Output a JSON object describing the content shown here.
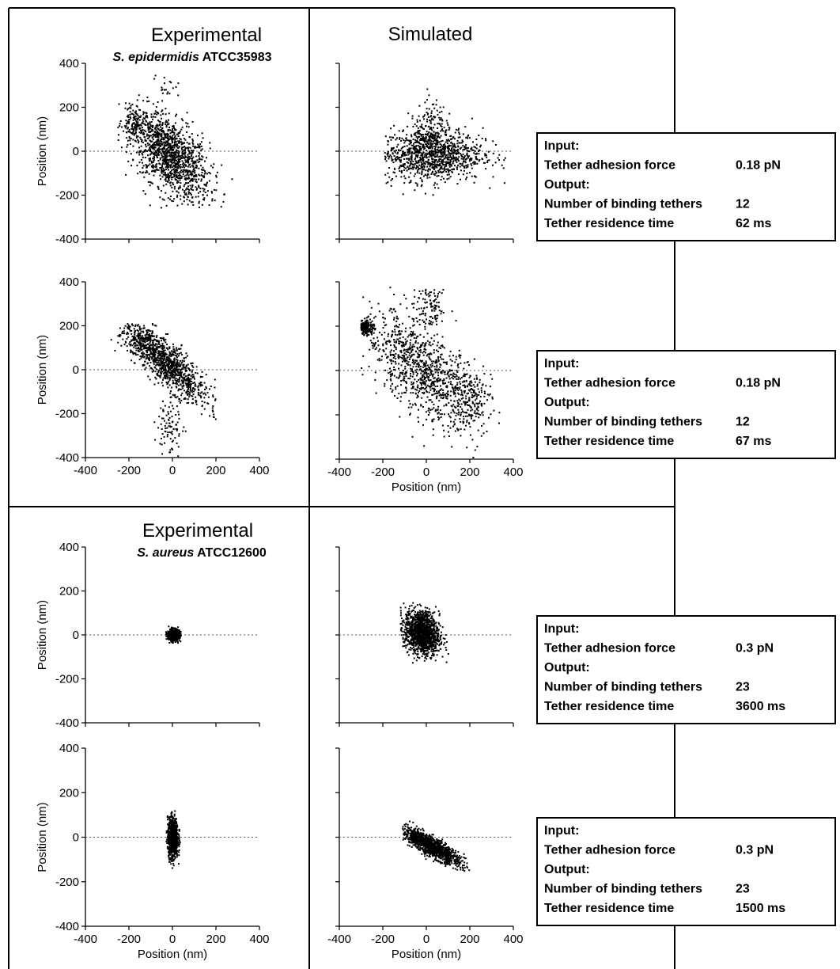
{
  "headings": [
    {
      "text": "Experimental",
      "italic": "S. epidermidis",
      "strain": " ATCC35983",
      "col": 0,
      "row": 0
    },
    {
      "text": "Simulated",
      "italic": "",
      "strain": "",
      "col": 1,
      "row": 0
    },
    {
      "text": "Experimental",
      "italic": "S. aureus",
      "strain": " ATCC12600",
      "col": 0,
      "row": 2
    }
  ],
  "axis": {
    "ylabel": "Position (nm)",
    "xlabel": "Position (nm)",
    "ticks": [
      -400,
      -200,
      0,
      200,
      400
    ],
    "xlim": [
      -400,
      400
    ],
    "ylim": [
      -400,
      400
    ]
  },
  "info_boxes": [
    {
      "input_label": "Input:",
      "force_label": "Tether adhesion force",
      "force_value": "0.18 pN",
      "output_label": "Output:",
      "tethers_label": "Number of binding tethers",
      "tethers_value": "12",
      "time_label": "Tether residence time",
      "time_value": "62 ms"
    },
    {
      "input_label": "Input:",
      "force_label": "Tether adhesion force",
      "force_value": "0.18 pN",
      "output_label": "Output:",
      "tethers_label": "Number of binding tethers",
      "tethers_value": "12",
      "time_label": "Tether residence time",
      "time_value": "67 ms"
    },
    {
      "input_label": "Input:",
      "force_label": "Tether adhesion force",
      "force_value": "0.3 pN",
      "output_label": "Output:",
      "tethers_label": "Number of binding tethers",
      "tethers_value": "23",
      "time_label": "Tether residence time",
      "time_value": "3600 ms"
    },
    {
      "input_label": "Input:",
      "force_label": "Tether adhesion force",
      "force_value": "0.3 pN",
      "output_label": "Output:",
      "tethers_label": "Number of binding tethers",
      "tethers_value": "23",
      "time_label": "Tether residence time",
      "time_value": "1500 ms"
    }
  ],
  "chart_data": [
    {
      "type": "scatter",
      "panel": "experimental-epidermidis-1",
      "ylabel": "Position (nm)",
      "xlabel": "",
      "show_xticks": false,
      "xlim": [
        -400,
        400
      ],
      "ylim": [
        -400,
        400
      ],
      "zero_line": true,
      "clusters": [
        {
          "cx": -10,
          "cy": -20,
          "sx": 90,
          "sy": 100,
          "rho": -0.55,
          "n": 1300
        },
        {
          "cx": -170,
          "cy": 120,
          "sx": 30,
          "sy": 35,
          "rho": -0.3,
          "n": 120
        },
        {
          "cx": -30,
          "cy": 300,
          "sx": 30,
          "sy": 25,
          "rho": 0,
          "n": 18
        }
      ],
      "range": {
        "x": [
          -260,
          290
        ],
        "y": [
          -260,
          350
        ]
      }
    },
    {
      "type": "scatter",
      "panel": "simulated-epidermidis-1",
      "ylabel": "",
      "xlabel": "",
      "show_xticks": false,
      "xlim": [
        -400,
        400
      ],
      "ylim": [
        -400,
        400
      ],
      "zero_line": true,
      "clusters": [
        {
          "cx": 20,
          "cy": -15,
          "sx": 120,
          "sy": 60,
          "rho": 0,
          "n": 1100
        },
        {
          "cx": 20,
          "cy": 110,
          "sx": 35,
          "sy": 70,
          "rho": 0,
          "n": 140
        }
      ],
      "range": {
        "x": [
          -190,
          400
        ],
        "y": [
          -215,
          315
        ]
      }
    },
    {
      "type": "scatter",
      "panel": "experimental-epidermidis-2",
      "ylabel": "Position (nm)",
      "xlabel": "",
      "show_xticks": true,
      "xlim": [
        -400,
        400
      ],
      "ylim": [
        -400,
        400
      ],
      "zero_line": true,
      "clusters": [
        {
          "cx": -40,
          "cy": 40,
          "sx": 100,
          "sy": 95,
          "rho": -0.85,
          "n": 1200
        },
        {
          "cx": -10,
          "cy": -260,
          "sx": 30,
          "sy": 70,
          "rho": 0,
          "n": 90
        }
      ],
      "range": {
        "x": [
          -290,
          200
        ],
        "y": [
          -400,
          210
        ]
      }
    },
    {
      "type": "scatter",
      "panel": "simulated-epidermidis-2",
      "ylabel": "",
      "xlabel": "Position (nm)",
      "show_xticks": true,
      "xlim": [
        -400,
        400
      ],
      "ylim": [
        -400,
        400
      ],
      "zero_line": true,
      "clusters": [
        {
          "cx": -20,
          "cy": 0,
          "sx": 130,
          "sy": 130,
          "rho": -0.65,
          "n": 1000
        },
        {
          "cx": -275,
          "cy": 195,
          "sx": 18,
          "sy": 18,
          "rho": 0,
          "n": 160
        },
        {
          "cx": 20,
          "cy": 280,
          "sx": 40,
          "sy": 50,
          "rho": 0,
          "n": 110
        },
        {
          "cx": 200,
          "cy": -120,
          "sx": 50,
          "sy": 60,
          "rho": 0,
          "n": 180
        }
      ],
      "range": {
        "x": [
          -300,
          380
        ],
        "y": [
          -400,
          375
        ]
      }
    },
    {
      "type": "scatter",
      "panel": "experimental-aureus-1",
      "ylabel": "Position (nm)",
      "xlabel": "",
      "show_xticks": false,
      "xlim": [
        -400,
        400
      ],
      "ylim": [
        -400,
        400
      ],
      "zero_line": true,
      "clusters": [
        {
          "cx": 5,
          "cy": 0,
          "sx": 14,
          "sy": 13,
          "rho": 0,
          "n": 600
        }
      ],
      "range": {
        "x": [
          -30,
          40
        ],
        "y": [
          -40,
          40
        ]
      }
    },
    {
      "type": "scatter",
      "panel": "simulated-aureus-1",
      "ylabel": "",
      "xlabel": "",
      "show_xticks": false,
      "xlim": [
        -400,
        400
      ],
      "ylim": [
        -400,
        400
      ],
      "zero_line": true,
      "clusters": [
        {
          "cx": -20,
          "cy": 10,
          "sx": 40,
          "sy": 50,
          "rho": -0.2,
          "n": 1300
        }
      ],
      "range": {
        "x": [
          -120,
          110
        ],
        "y": [
          -140,
          150
        ]
      }
    },
    {
      "type": "scatter",
      "panel": "experimental-aureus-2",
      "ylabel": "Position (nm)",
      "xlabel": "Position (nm)",
      "show_xticks": true,
      "xlim": [
        -400,
        400
      ],
      "ylim": [
        -400,
        400
      ],
      "zero_line": true,
      "clusters": [
        {
          "cx": 2,
          "cy": -5,
          "sx": 12,
          "sy": 45,
          "rho": 0,
          "n": 900
        }
      ],
      "range": {
        "x": [
          -30,
          40
        ],
        "y": [
          -140,
          120
        ]
      }
    },
    {
      "type": "scatter",
      "panel": "simulated-aureus-2",
      "ylabel": "",
      "xlabel": "Position (nm)",
      "show_xticks": true,
      "xlim": [
        -400,
        400
      ],
      "ylim": [
        -400,
        400
      ],
      "zero_line": true,
      "clusters": [
        {
          "cx": 20,
          "cy": -40,
          "sx": 65,
          "sy": 40,
          "rho": -0.85,
          "n": 1300
        }
      ],
      "range": {
        "x": [
          -110,
          200
        ],
        "y": [
          -175,
          130
        ]
      }
    }
  ]
}
